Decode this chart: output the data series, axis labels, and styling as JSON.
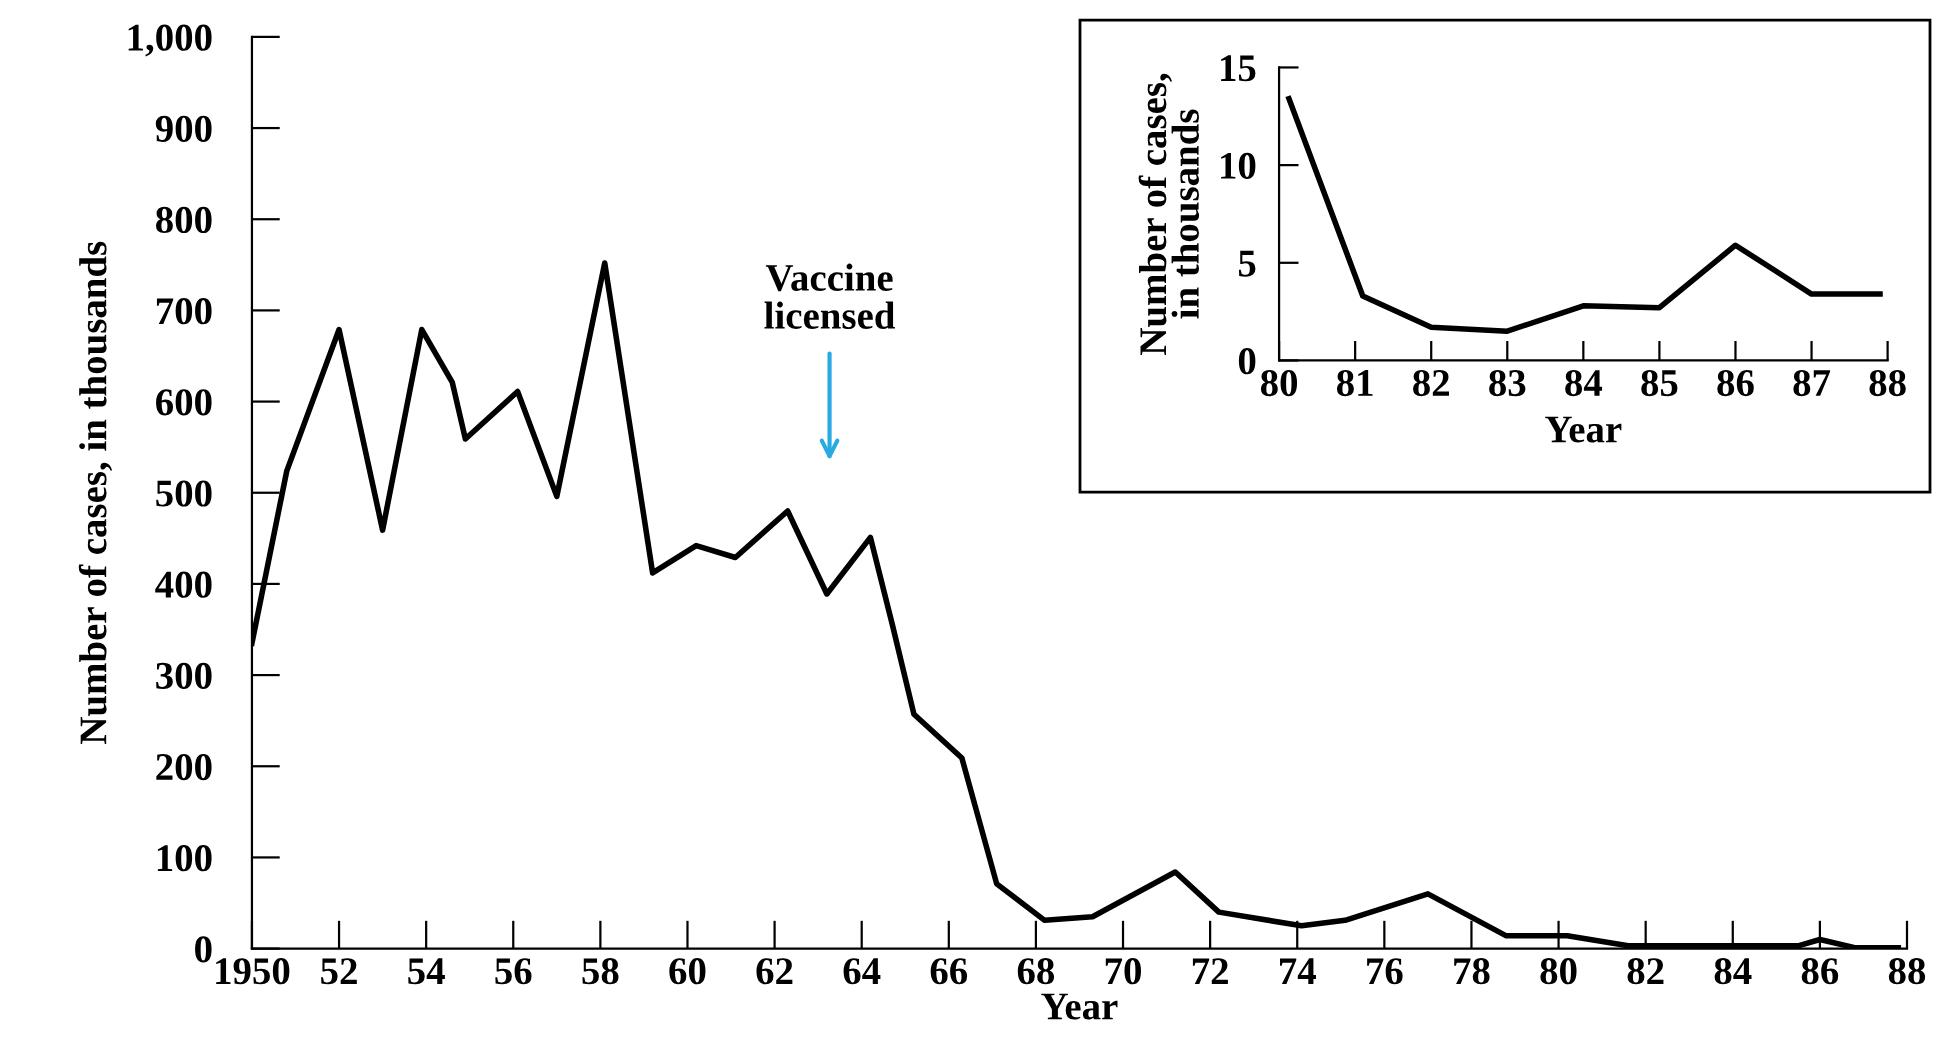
{
  "chart_data": [
    {
      "type": "line",
      "xlabel": "Year",
      "ylabel": "Number of cases, in thousands",
      "x": [
        1950,
        1950.8,
        1952.0,
        1953.0,
        1953.9,
        1954.6,
        1954.9,
        1956.1,
        1957.0,
        1958.1,
        1959.2,
        1960.2,
        1961.1,
        1962.3,
        1963.2,
        1964.2,
        1964.7,
        1965.2,
        1966.3,
        1967.1,
        1968.2,
        1969.3,
        1971.2,
        1972.2,
        1974.1,
        1975.1,
        1977.0,
        1978.8,
        1980.2,
        1981.6,
        1985.5,
        1986.0,
        1986.8,
        1987.8
      ],
      "series": [
        {
          "color": "#000000",
          "values": [
            335,
            524,
            679,
            459,
            679,
            621,
            559,
            611,
            496,
            752,
            412,
            442,
            429,
            480,
            389,
            451,
            356,
            257,
            209,
            71,
            31,
            35,
            84,
            40,
            25,
            31,
            60,
            14,
            14,
            3,
            3,
            10,
            1,
            1
          ]
        }
      ],
      "xlim": [
        1950,
        1988
      ],
      "ylim": [
        0,
        1000
      ],
      "xticks": [
        {
          "value": 1950,
          "label": "1950"
        },
        {
          "value": 1952,
          "label": "52"
        },
        {
          "value": 1954,
          "label": "54"
        },
        {
          "value": 1956,
          "label": "56"
        },
        {
          "value": 1958,
          "label": "58"
        },
        {
          "value": 1960,
          "label": "60"
        },
        {
          "value": 1962,
          "label": "62"
        },
        {
          "value": 1964,
          "label": "64"
        },
        {
          "value": 1966,
          "label": "66"
        },
        {
          "value": 1968,
          "label": "68"
        },
        {
          "value": 1970,
          "label": "70"
        },
        {
          "value": 1972,
          "label": "72"
        },
        {
          "value": 1974,
          "label": "74"
        },
        {
          "value": 1976,
          "label": "76"
        },
        {
          "value": 1978,
          "label": "78"
        },
        {
          "value": 1980,
          "label": "80"
        },
        {
          "value": 1982,
          "label": "82"
        },
        {
          "value": 1984,
          "label": "84"
        },
        {
          "value": 1986,
          "label": "86"
        },
        {
          "value": 1988,
          "label": "88"
        }
      ],
      "yticks": [
        0,
        100,
        200,
        300,
        400,
        500,
        600,
        700,
        800,
        900,
        {
          "value": 1000,
          "label": "1,000"
        }
      ],
      "annotations": [
        "Vaccine\nlicensed"
      ],
      "grid": false,
      "legend": false,
      "marker": "none",
      "line_style": "solid"
    },
    {
      "type": "line",
      "xlabel": "Year",
      "ylabel": "Number of cases,\nin thousands",
      "x": [
        80.13,
        81.1,
        82.0,
        83.0,
        84.0,
        85.0,
        86.0,
        87.0,
        87.9
      ],
      "series": [
        {
          "color": "#000000",
          "values": [
            13.4,
            3.3,
            1.7,
            1.5,
            2.8,
            2.7,
            5.9,
            3.4,
            3.4
          ]
        }
      ],
      "xlim": [
        80,
        88
      ],
      "ylim": [
        0,
        15
      ],
      "xticks": [
        80,
        81,
        82,
        83,
        84,
        85,
        86,
        87,
        88
      ],
      "yticks": [
        0,
        5,
        10,
        15
      ],
      "grid": false,
      "legend": false,
      "marker": "none",
      "line_style": "solid"
    }
  ]
}
